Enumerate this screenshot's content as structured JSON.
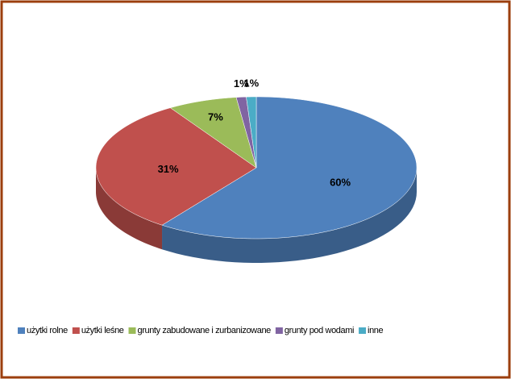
{
  "chart_data": {
    "type": "pie",
    "categories": [
      "użytki rolne",
      "użytki leśne",
      "grunty zabudowane i zurbanizowane",
      "grunty pod wodami",
      "inne"
    ],
    "values": [
      60,
      31,
      7,
      1,
      1
    ],
    "value_labels": [
      "60%",
      "31%",
      "7%",
      "1%",
      "1%"
    ],
    "colors": [
      "#4f81bd",
      "#c0504d",
      "#9bbb59",
      "#8064a2",
      "#4bacc6"
    ],
    "legend": "bottom"
  }
}
